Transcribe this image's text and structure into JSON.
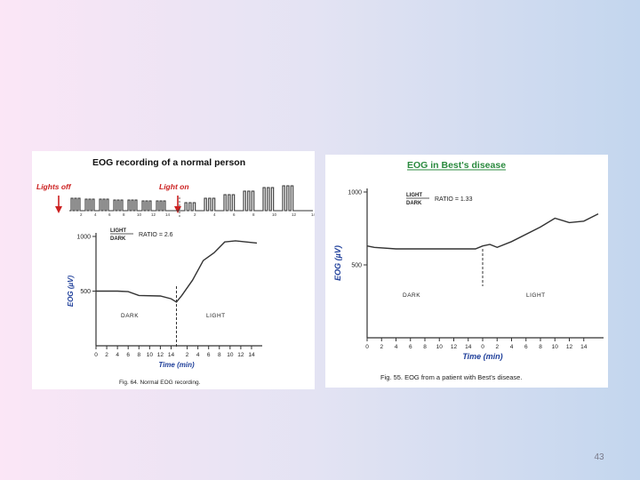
{
  "page_number": "43",
  "chart_data": [
    {
      "type": "line",
      "title": "EOG recording of a normal person",
      "caption": "Fig. 64. Normal EOG recording.",
      "xlabel": "Time (min)",
      "ylabel": "EOG (µV)",
      "phases": [
        {
          "label": "DARK",
          "ticks": [
            "0",
            "2",
            "4",
            "6",
            "8",
            "10",
            "12",
            "14"
          ]
        },
        {
          "label": "LIGHT",
          "ticks": [
            "2",
            "4",
            "6",
            "8",
            "10",
            "12",
            "14"
          ]
        }
      ],
      "x_start": 0,
      "x_end": 30,
      "phase_change": 15,
      "y_ticks": [
        {
          "value": 500,
          "label": "500"
        },
        {
          "value": 1000,
          "label": "1000"
        }
      ],
      "ylim": [
        0,
        1000
      ],
      "ratio_label": {
        "numerator": "LIGHT",
        "denominator": "DARK",
        "text": "RATIO = 2.6"
      },
      "series": [
        {
          "x": [
            0,
            4,
            6,
            8,
            12,
            14,
            15,
            16,
            18,
            20,
            22,
            24,
            26,
            28,
            30
          ],
          "y": [
            500,
            500,
            495,
            460,
            455,
            430,
            400,
            460,
            600,
            780,
            850,
            950,
            960,
            950,
            940
          ]
        }
      ],
      "stimulus_labels": {
        "lights_off": "Lights off",
        "lights_on": "Light on"
      },
      "raw_trace_ticks": [
        "2",
        "4",
        "6",
        "8",
        "10",
        "12",
        "14",
        "2",
        "4",
        "6",
        "8",
        "10",
        "12",
        "14"
      ]
    },
    {
      "type": "line",
      "title": "EOG in Best's disease",
      "caption": "Fig. 55. EOG from a patient with Best's disease.",
      "xlabel": "Time (min)",
      "ylabel": "EOG (µV)",
      "phases": [
        {
          "label": "DARK",
          "ticks": [
            "0",
            "2",
            "4",
            "6",
            "8",
            "10",
            "12",
            "14"
          ]
        },
        {
          "label": "LIGHT",
          "ticks": [
            "0",
            "2",
            "4",
            "6",
            "8",
            "10",
            "12",
            "14"
          ]
        }
      ],
      "x_start": 0,
      "x_end": 32,
      "phase_change": 16,
      "y_ticks": [
        {
          "value": 500,
          "label": "500"
        },
        {
          "value": 1000,
          "label": "1000"
        }
      ],
      "ylim": [
        0,
        1000
      ],
      "ratio_label": {
        "numerator": "LIGHT",
        "denominator": "DARK",
        "text": "RATIO = 1.33"
      },
      "series": [
        {
          "x": [
            0,
            1,
            4,
            8,
            12,
            15,
            16,
            17,
            18,
            20,
            24,
            26,
            28,
            30,
            32
          ],
          "y": [
            630,
            620,
            610,
            610,
            610,
            610,
            630,
            640,
            620,
            660,
            760,
            820,
            790,
            800,
            850
          ]
        }
      ]
    }
  ]
}
